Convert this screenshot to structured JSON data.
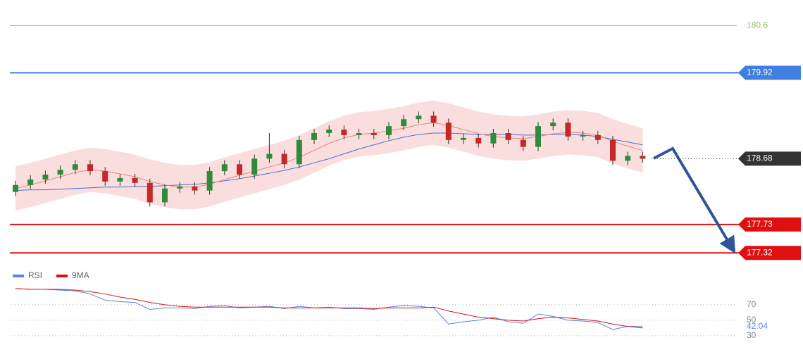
{
  "chart_data": [
    {
      "type": "candlestick",
      "ylim": [
        177.16,
        180.97
      ],
      "up_color": "#2e8b3a",
      "down_color": "#c62828",
      "open": [
        178.2,
        178.3,
        178.38,
        178.45,
        178.52,
        178.6,
        178.5,
        178.35,
        178.4,
        178.33,
        178.05,
        178.25,
        178.28,
        178.22,
        178.5,
        178.6,
        178.45,
        178.68,
        178.75,
        178.6,
        178.95,
        179.05,
        179.1,
        179.02,
        179.05,
        179.02,
        179.15,
        179.25,
        179.3,
        179.2,
        178.95,
        178.98,
        178.9,
        179.05,
        178.95,
        178.85,
        179.15,
        179.2,
        179.0,
        179.02,
        178.95,
        178.65,
        178.72
      ],
      "high": [
        178.36,
        178.44,
        178.51,
        178.58,
        178.66,
        178.66,
        178.56,
        178.46,
        178.46,
        178.39,
        178.31,
        178.34,
        178.34,
        178.56,
        178.66,
        178.66,
        178.74,
        179.05,
        178.81,
        179.01,
        179.11,
        179.16,
        179.16,
        179.11,
        179.11,
        179.21,
        179.31,
        179.36,
        179.36,
        179.26,
        179.04,
        179.04,
        179.11,
        179.11,
        179.01,
        179.21,
        179.26,
        179.26,
        179.08,
        179.08,
        179.01,
        178.78,
        178.78
      ],
      "low": [
        178.14,
        178.24,
        178.32,
        178.39,
        178.46,
        178.44,
        178.29,
        178.29,
        178.27,
        177.99,
        177.99,
        178.19,
        178.16,
        178.16,
        178.44,
        178.39,
        178.39,
        178.62,
        178.54,
        178.54,
        178.89,
        178.99,
        178.96,
        178.96,
        178.96,
        178.96,
        179.09,
        179.19,
        179.14,
        178.89,
        178.89,
        178.84,
        178.84,
        178.89,
        178.79,
        178.79,
        179.09,
        178.94,
        178.94,
        178.89,
        178.59,
        178.59,
        178.62
      ],
      "close": [
        178.3,
        178.38,
        178.45,
        178.52,
        178.6,
        178.5,
        178.35,
        178.4,
        178.33,
        178.05,
        178.25,
        178.28,
        178.22,
        178.5,
        178.6,
        178.45,
        178.68,
        178.75,
        178.6,
        178.95,
        179.05,
        179.1,
        179.02,
        179.05,
        179.02,
        179.15,
        179.25,
        179.3,
        179.2,
        178.95,
        178.98,
        178.9,
        179.05,
        178.95,
        178.85,
        179.15,
        179.2,
        179.0,
        179.02,
        178.95,
        178.65,
        178.72,
        178.68
      ],
      "band": {
        "color": "#f9d6d6",
        "upper": [
          178.57,
          178.62,
          178.68,
          178.74,
          178.8,
          178.84,
          178.82,
          178.78,
          178.74,
          178.67,
          178.62,
          178.59,
          178.59,
          178.63,
          178.7,
          178.76,
          178.82,
          178.88,
          178.94,
          179.02,
          179.12,
          179.22,
          179.3,
          179.35,
          179.37,
          179.4,
          179.44,
          179.49,
          179.52,
          179.48,
          179.42,
          179.36,
          179.32,
          179.3,
          179.29,
          179.32,
          179.36,
          179.38,
          179.37,
          179.34,
          179.25,
          179.18,
          179.12
        ],
        "lower": [
          177.93,
          177.98,
          178.04,
          178.1,
          178.16,
          178.2,
          178.18,
          178.14,
          178.1,
          178.03,
          177.98,
          177.95,
          177.95,
          177.99,
          178.06,
          178.12,
          178.18,
          178.24,
          178.3,
          178.38,
          178.48,
          178.58,
          178.66,
          178.71,
          178.73,
          178.76,
          178.8,
          178.85,
          178.88,
          178.84,
          178.78,
          178.72,
          178.68,
          178.66,
          178.65,
          178.68,
          178.72,
          178.74,
          178.73,
          178.7,
          178.61,
          178.54,
          178.48
        ]
      },
      "lines": [
        {
          "color": "#4a6fc9",
          "values": [
            178.22,
            178.23,
            178.23,
            178.24,
            178.25,
            178.26,
            178.27,
            178.27,
            178.28,
            178.28,
            178.29,
            178.3,
            178.31,
            178.33,
            178.36,
            178.39,
            178.43,
            178.47,
            178.51,
            178.56,
            178.62,
            178.68,
            178.75,
            178.82,
            178.88,
            178.94,
            178.99,
            179.03,
            179.05,
            179.05,
            179.04,
            179.03,
            179.03,
            179.03,
            179.02,
            179.02,
            179.03,
            179.03,
            179.02,
            179.0,
            178.96,
            178.92,
            178.88
          ]
        },
        {
          "color": "#f08080",
          "values": [
            178.25,
            178.3,
            178.36,
            178.42,
            178.48,
            178.52,
            178.5,
            178.46,
            178.42,
            178.35,
            178.3,
            178.27,
            178.27,
            178.31,
            178.38,
            178.44,
            178.5,
            178.56,
            178.62,
            178.7,
            178.8,
            178.9,
            178.98,
            179.03,
            179.05,
            179.08,
            179.12,
            179.17,
            179.2,
            179.16,
            179.1,
            179.04,
            179.0,
            178.98,
            178.97,
            179.0,
            179.04,
            179.06,
            179.05,
            179.02,
            178.93,
            178.86,
            178.8
          ]
        }
      ],
      "levels": [
        {
          "value": 180.6,
          "color": "#8bbf5a",
          "tag": false
        },
        {
          "value": 179.92,
          "color": "#3f7fe0",
          "tag": true
        },
        {
          "value": 178.68,
          "color": "#333333",
          "tag": true,
          "dotted": true
        },
        {
          "value": 177.73,
          "color": "#e01010",
          "tag": true
        },
        {
          "value": 177.32,
          "color": "#e01010",
          "tag": true
        }
      ]
    },
    {
      "type": "line",
      "ylim": [
        18,
        100
      ],
      "yticks": [
        30,
        50,
        70
      ],
      "grid": true,
      "series": [
        {
          "name": "RSI",
          "color": "#5b84e0",
          "values": [
            91,
            90,
            90,
            89,
            88,
            84,
            76,
            74,
            73,
            64,
            66,
            66,
            65,
            68,
            69,
            66,
            67,
            68,
            65,
            68,
            66,
            67,
            65,
            65,
            64,
            67,
            69,
            68,
            66,
            45,
            48,
            50,
            54,
            48,
            46,
            58,
            55,
            50,
            49,
            47,
            38,
            42,
            42.04
          ]
        },
        {
          "name": "9MA",
          "color": "#e01010",
          "values": [
            91,
            90,
            90,
            90,
            89,
            87,
            84,
            80,
            77,
            73,
            70,
            68,
            67,
            67,
            67,
            67,
            67,
            67,
            66,
            66,
            66,
            66,
            66,
            66,
            65,
            66,
            66,
            66,
            67,
            62,
            58,
            54,
            52,
            50,
            49,
            52,
            54,
            53,
            51,
            49,
            45,
            42,
            40
          ]
        }
      ]
    }
  ]
}
